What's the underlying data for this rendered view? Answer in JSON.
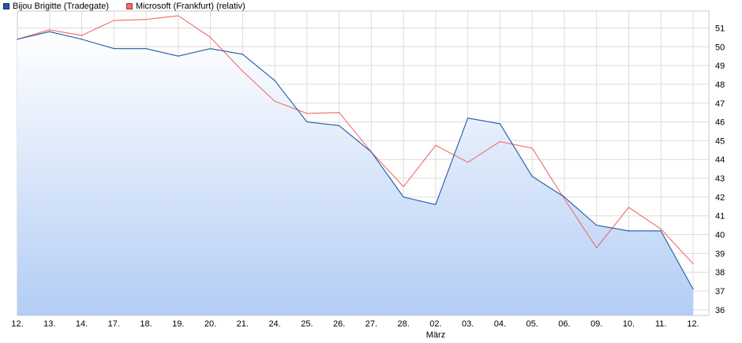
{
  "colors": {
    "series_a": "#1f5aa6",
    "series_b": "#f26b6b",
    "fill_top": "#ffffff",
    "fill_bottom": "#b3cdf5",
    "grid": "#dcdcdc"
  },
  "chart_data": {
    "type": "line",
    "title": "",
    "xlabel": "März",
    "ylabel": "",
    "ylim": [
      35.7,
      51.9
    ],
    "y_ticks": [
      36,
      37,
      38,
      39,
      40,
      41,
      42,
      43,
      44,
      45,
      46,
      47,
      48,
      49,
      50,
      51
    ],
    "grid": true,
    "legend_position": "top-left",
    "categories": [
      "12.",
      "13.",
      "14.",
      "17.",
      "18.",
      "19.",
      "20.",
      "21.",
      "24.",
      "25.",
      "26.",
      "27.",
      "28.",
      "02.",
      "03.",
      "04.",
      "05.",
      "06.",
      "09.",
      "10.",
      "11.",
      "12."
    ],
    "series": [
      {
        "name": "Bijou Brigitte (Tradegate)",
        "color": "#1f5aa6",
        "filled": true,
        "values": [
          50.4,
          50.8,
          50.4,
          49.9,
          49.9,
          49.5,
          49.9,
          49.6,
          48.2,
          46.0,
          45.8,
          44.4,
          42.0,
          41.6,
          46.2,
          45.9,
          43.1,
          42.0,
          40.5,
          40.2,
          40.2,
          37.1
        ]
      },
      {
        "name": "Microsoft (Frankfurt) (relativ)",
        "color": "#f26b6b",
        "filled": false,
        "values": [
          50.4,
          50.9,
          50.6,
          51.4,
          51.45,
          51.65,
          50.5,
          48.7,
          47.1,
          46.45,
          46.5,
          44.4,
          42.55,
          44.75,
          43.85,
          44.95,
          44.6,
          41.9,
          39.3,
          41.45,
          40.3,
          38.45
        ]
      }
    ]
  }
}
